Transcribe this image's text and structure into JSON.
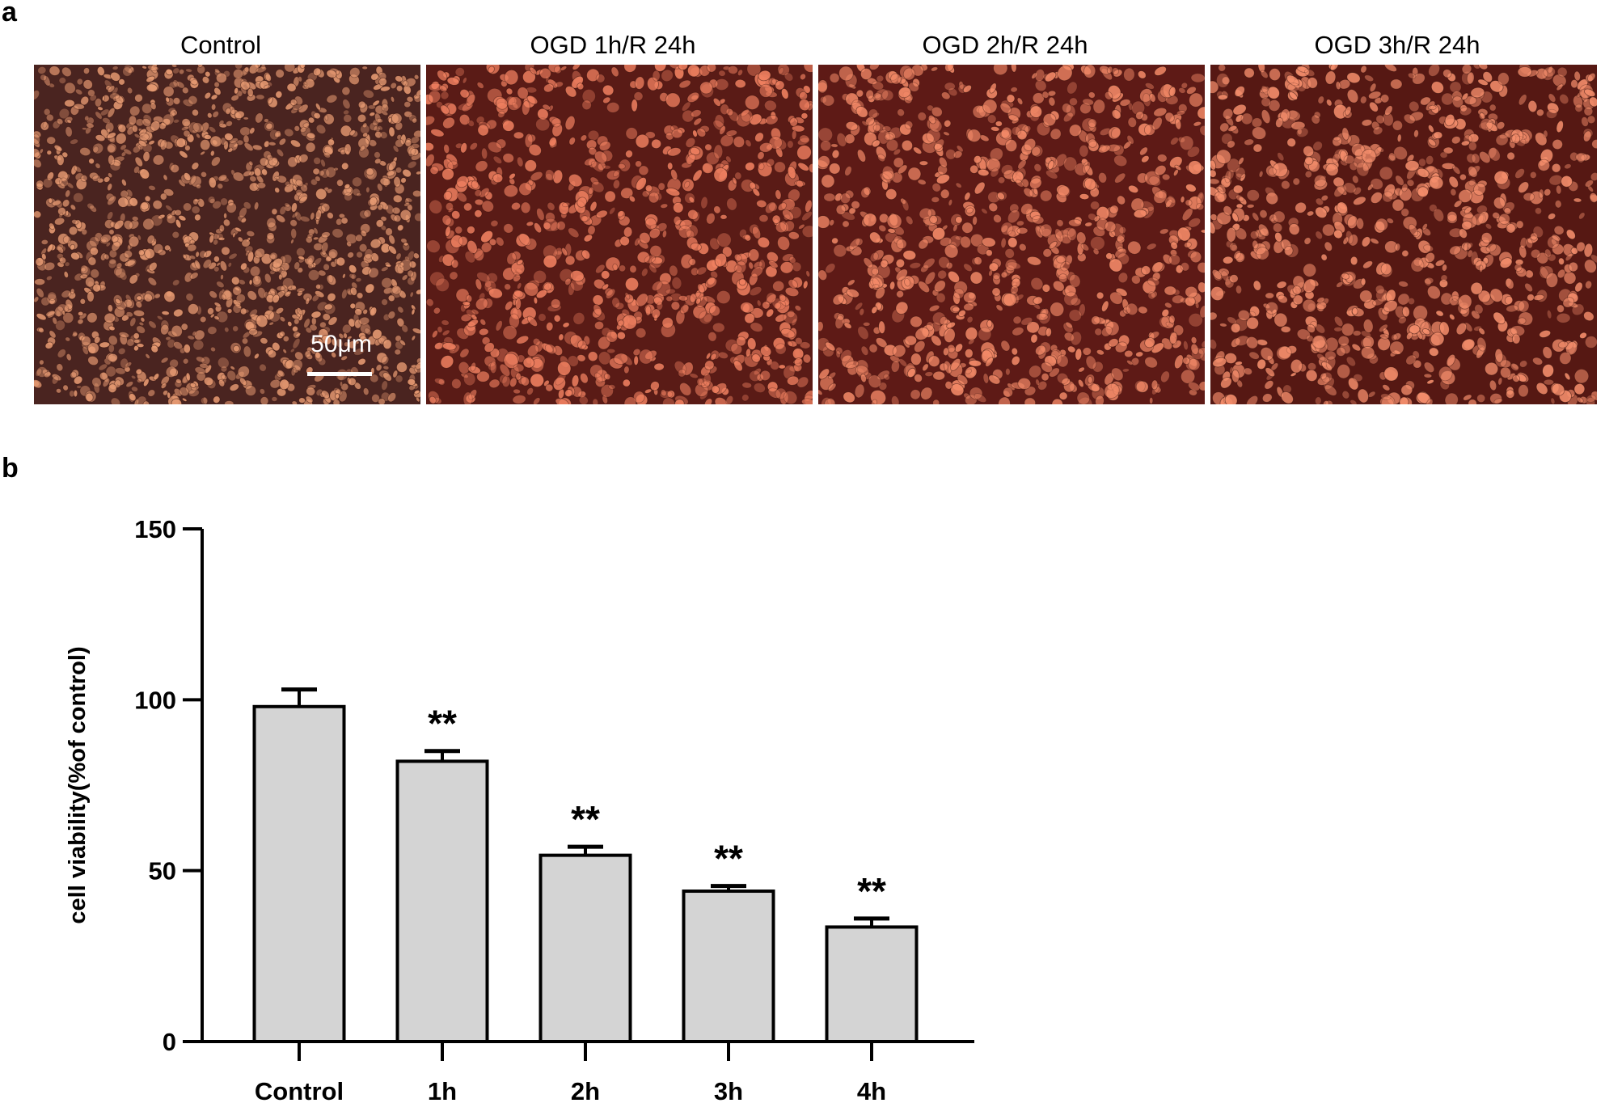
{
  "figure": {
    "panel_a_label": "a",
    "panel_b_label": "b"
  },
  "micrographs": [
    {
      "title": "Control",
      "scale_bar_label": "50μm",
      "base": "#4a2420",
      "cell": "#e79a72"
    },
    {
      "title": "OGD 1h/R 24h",
      "scale_bar_label": "",
      "base": "#5a1b16",
      "cell": "#f08060"
    },
    {
      "title": "OGD 2h/R 24h",
      "scale_bar_label": "",
      "base": "#5e1a16",
      "cell": "#f48a68"
    },
    {
      "title": "OGD 3h/R 24h",
      "scale_bar_label": "",
      "base": "#561813",
      "cell": "#f58e6c"
    }
  ],
  "chart_data": {
    "type": "bar",
    "categories": [
      "Control",
      "1h",
      "2h",
      "3h",
      "4h"
    ],
    "values": [
      98,
      82,
      54.5,
      44,
      33.5
    ],
    "errors": [
      5,
      3,
      2.5,
      1.5,
      2.5
    ],
    "significance": [
      "",
      "**",
      "**",
      "**",
      "**"
    ],
    "ylabel": "cell viability(%of control)",
    "xlabel": "",
    "ylim": [
      0,
      150
    ],
    "yticks": [
      0,
      50,
      100,
      150
    ],
    "bar_color": "#d4d4d4",
    "edge_color": "#000000",
    "grid": false,
    "legend": false
  }
}
